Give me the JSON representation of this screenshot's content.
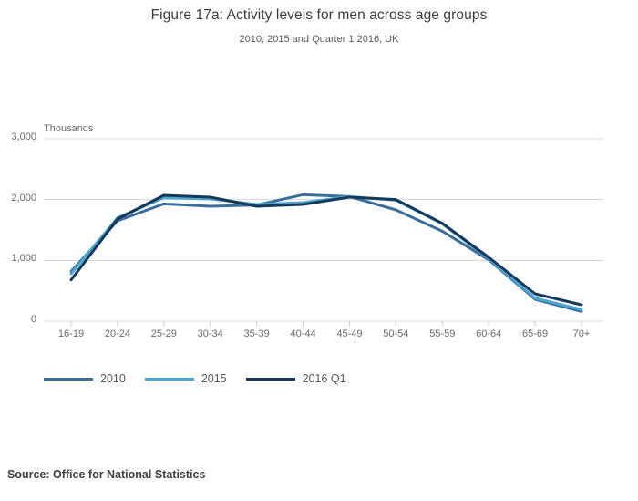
{
  "header": {
    "title": "Figure 17a: Activity levels for men across age groups",
    "subtitle": "2010, 2015 and Quarter 1 2016, UK"
  },
  "chart_data": {
    "type": "line",
    "title": "Figure 17a: Activity levels for men across age groups",
    "subtitle": "2010, 2015 and Quarter 1 2016, UK",
    "unit_label": "Thousands",
    "categories": [
      "16-19",
      "20-24",
      "25-29",
      "30-34",
      "35-39",
      "40-44",
      "45-49",
      "50-54",
      "55-59",
      "60-64",
      "65-69",
      "70+"
    ],
    "series": [
      {
        "name": "2010",
        "color": "#3c6e9c",
        "values": [
          820,
          1650,
          1930,
          1890,
          1910,
          2080,
          2050,
          1830,
          1480,
          1010,
          360,
          160
        ]
      },
      {
        "name": "2015",
        "color": "#4aa6d2",
        "values": [
          780,
          1700,
          2030,
          2010,
          1920,
          1950,
          2050,
          1990,
          1600,
          1030,
          380,
          190
        ]
      },
      {
        "name": "2016 Q1",
        "color": "#16395b",
        "values": [
          680,
          1680,
          2070,
          2040,
          1890,
          1920,
          2040,
          2000,
          1610,
          1050,
          450,
          270
        ]
      }
    ],
    "ylim": [
      0,
      3000
    ],
    "yticks": [
      0,
      1000,
      2000,
      3000
    ],
    "ytick_labels": [
      "0",
      "1,000",
      "2,000",
      "3,000"
    ],
    "grid": true,
    "legend_position": "bottom-left"
  },
  "footer": {
    "source": "Source: Office for National Statistics"
  }
}
